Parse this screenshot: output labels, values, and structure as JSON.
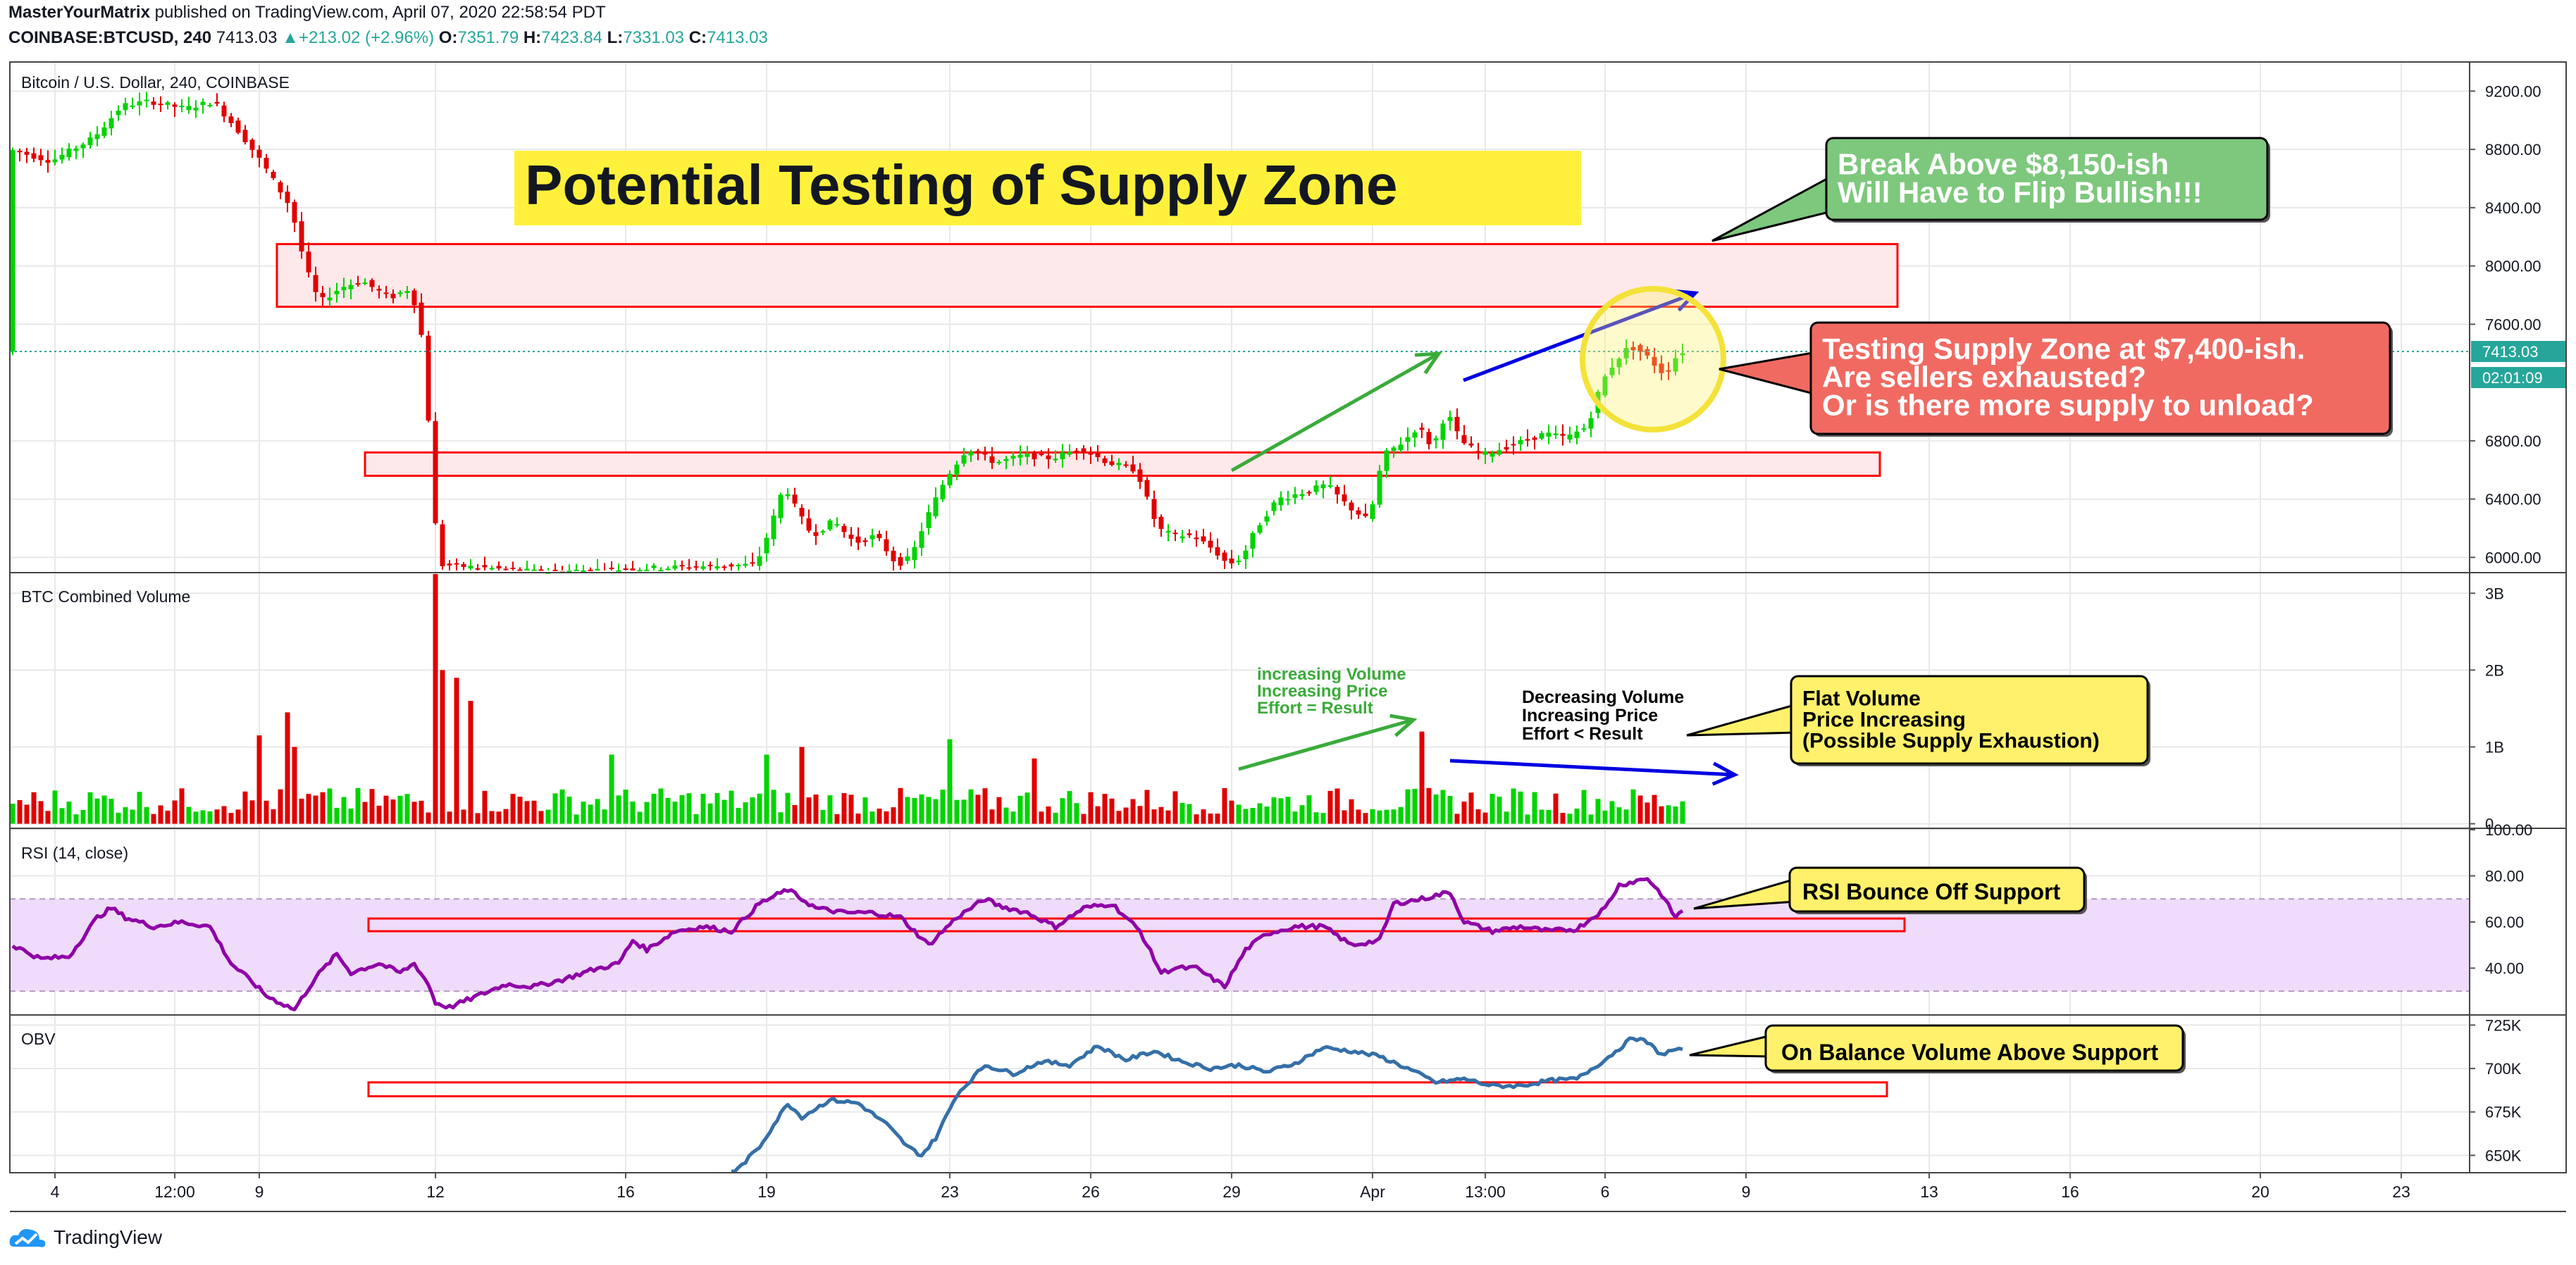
{
  "header": {
    "author": "MasterYourMatrix",
    "published_text": "published on TradingView.com, April 07, 2020 22:58:54 PDT",
    "symbol": "COINBASE:BTCUSD, 240",
    "last": "7413.03",
    "change": "+213.02 (+2.96%)",
    "o_label": "O:",
    "open": "7351.79",
    "h_label": "H:",
    "high": "7423.84",
    "l_label": "L:",
    "low": "7331.03",
    "c_label": "C:",
    "close": "7413.03"
  },
  "colors": {
    "up": "#00d400",
    "down": "#e00000",
    "grid": "#e8e8e8",
    "zone_fill": "#fde8ea",
    "zone_border": "#ff0000",
    "rsi_line": "#8e00a6",
    "obv_line": "#356fa8",
    "rsi_band": "#efdbfa",
    "green_box": "#7dc87d",
    "red_box": "#f06a62",
    "yellow_box": "#fff16b",
    "title_bg": "#fff13b",
    "arrow_green": "#3aab3a",
    "arrow_blue": "#0000e0"
  },
  "chart_data": [
    {
      "type": "candlestick",
      "title": "Bitcoin / U.S. Dollar, 240, COINBASE",
      "ylim": [
        5900,
        9400
      ],
      "yticks": [
        "9200.00",
        "8800.00",
        "8400.00",
        "8000.00",
        "7600.00",
        "6800.00",
        "6400.00",
        "6000.00"
      ],
      "price_label": "7413.03",
      "countdown_label": "02:01:09",
      "anchors": [
        [
          0,
          8800
        ],
        [
          6,
          8720
        ],
        [
          12,
          8880
        ],
        [
          16,
          9100
        ],
        [
          20,
          9130
        ],
        [
          25,
          9080
        ],
        [
          29,
          9130
        ],
        [
          33,
          8900
        ],
        [
          36,
          8700
        ],
        [
          40,
          8400
        ],
        [
          42,
          8000
        ],
        [
          44,
          7750
        ],
        [
          47,
          7850
        ],
        [
          50,
          7900
        ],
        [
          54,
          7780
        ],
        [
          57,
          7850
        ],
        [
          58,
          7650
        ],
        [
          59,
          7400
        ],
        [
          60,
          6500
        ],
        [
          61,
          5950
        ],
        [
          75,
          5900
        ],
        [
          106,
          5950
        ],
        [
          108,
          6200
        ],
        [
          110,
          6500
        ],
        [
          112,
          6300
        ],
        [
          114,
          6150
        ],
        [
          117,
          6250
        ],
        [
          120,
          6100
        ],
        [
          123,
          6150
        ],
        [
          126,
          5950
        ],
        [
          128,
          6000
        ],
        [
          130,
          6250
        ],
        [
          133,
          6550
        ],
        [
          136,
          6750
        ],
        [
          140,
          6650
        ],
        [
          144,
          6700
        ],
        [
          148,
          6680
        ],
        [
          152,
          6750
        ],
        [
          156,
          6650
        ],
        [
          160,
          6600
        ],
        [
          163,
          6200
        ],
        [
          165,
          6150
        ],
        [
          168,
          6150
        ],
        [
          171,
          6050
        ],
        [
          173,
          5950
        ],
        [
          175,
          6000
        ],
        [
          177,
          6200
        ],
        [
          180,
          6400
        ],
        [
          184,
          6450
        ],
        [
          187,
          6500
        ],
        [
          190,
          6350
        ],
        [
          193,
          6250
        ],
        [
          195,
          6700
        ],
        [
          198,
          6800
        ],
        [
          200,
          6900
        ],
        [
          202,
          6750
        ],
        [
          204,
          7000
        ],
        [
          206,
          6800
        ],
        [
          209,
          6700
        ],
        [
          212,
          6750
        ],
        [
          215,
          6800
        ],
        [
          218,
          6850
        ],
        [
          221,
          6820
        ],
        [
          224,
          6900
        ],
        [
          226,
          7200
        ],
        [
          228,
          7350
        ],
        [
          230,
          7450
        ],
        [
          232,
          7400
        ],
        [
          234,
          7300
        ],
        [
          235,
          7250
        ],
        [
          236,
          7330
        ],
        [
          237,
          7413
        ]
      ],
      "zones": [
        {
          "label": "supply zone",
          "x1": 37.5,
          "x2": 267.5,
          "p1": 8150,
          "p2": 7720
        },
        {
          "label": "support zone",
          "x1": 50,
          "x2": 265,
          "p1": 6720,
          "p2": 6560
        }
      ]
    },
    {
      "type": "bar",
      "title": "BTC Combined Volume",
      "ylim": [
        -0.05,
        3.25
      ],
      "yticks": [
        "3B",
        "2B",
        "1B",
        "0"
      ],
      "spikes": [
        [
          60,
          3.25
        ],
        [
          61,
          2.0
        ],
        [
          63,
          1.9
        ],
        [
          65,
          1.6
        ],
        [
          39,
          1.45
        ],
        [
          35,
          1.15
        ],
        [
          40,
          1.0
        ],
        [
          112,
          1.0
        ],
        [
          133,
          1.1
        ],
        [
          200,
          1.2
        ],
        [
          145,
          0.85
        ],
        [
          85,
          0.9
        ],
        [
          107,
          0.9
        ]
      ]
    },
    {
      "type": "line",
      "title": "RSI (14, close)",
      "ylim": [
        20,
        100
      ],
      "yticks": [
        "100.00",
        "80.00",
        "60.00",
        "40.00"
      ],
      "band": [
        30,
        70
      ],
      "anchors": [
        [
          0,
          50
        ],
        [
          4,
          44
        ],
        [
          8,
          45
        ],
        [
          12,
          62
        ],
        [
          14,
          66
        ],
        [
          16,
          62
        ],
        [
          18,
          60
        ],
        [
          20,
          58
        ],
        [
          24,
          60
        ],
        [
          28,
          58
        ],
        [
          31,
          42
        ],
        [
          34,
          34
        ],
        [
          36,
          28
        ],
        [
          38,
          25
        ],
        [
          40,
          22
        ],
        [
          43,
          36
        ],
        [
          46,
          46
        ],
        [
          48,
          38
        ],
        [
          52,
          42
        ],
        [
          55,
          38
        ],
        [
          57,
          42
        ],
        [
          59,
          33
        ],
        [
          60,
          25
        ],
        [
          62,
          23
        ],
        [
          66,
          28
        ],
        [
          70,
          33
        ],
        [
          74,
          32
        ],
        [
          78,
          35
        ],
        [
          82,
          39
        ],
        [
          86,
          42
        ],
        [
          88,
          52
        ],
        [
          90,
          48
        ],
        [
          94,
          56
        ],
        [
          98,
          58
        ],
        [
          102,
          56
        ],
        [
          106,
          68
        ],
        [
          110,
          74
        ],
        [
          114,
          66
        ],
        [
          118,
          64
        ],
        [
          122,
          64
        ],
        [
          126,
          62
        ],
        [
          130,
          50
        ],
        [
          134,
          62
        ],
        [
          138,
          70
        ],
        [
          140,
          67
        ],
        [
          144,
          64
        ],
        [
          148,
          58
        ],
        [
          152,
          66
        ],
        [
          156,
          68
        ],
        [
          160,
          56
        ],
        [
          163,
          38
        ],
        [
          165,
          40
        ],
        [
          168,
          40
        ],
        [
          172,
          32
        ],
        [
          175,
          48
        ],
        [
          178,
          55
        ],
        [
          182,
          58
        ],
        [
          186,
          58
        ],
        [
          190,
          50
        ],
        [
          194,
          52
        ],
        [
          196,
          68
        ],
        [
          200,
          70
        ],
        [
          204,
          73
        ],
        [
          206,
          60
        ],
        [
          210,
          56
        ],
        [
          214,
          58
        ],
        [
          218,
          56
        ],
        [
          222,
          57
        ],
        [
          226,
          66
        ],
        [
          228,
          76
        ],
        [
          232,
          79
        ],
        [
          234,
          72
        ],
        [
          236,
          62
        ],
        [
          237,
          65
        ]
      ]
    },
    {
      "type": "line",
      "title": "OBV",
      "ylim": [
        640,
        730
      ],
      "yticks": [
        "725K",
        "700K",
        "675K",
        "650K"
      ],
      "anchors": [
        [
          102,
          638
        ],
        [
          106,
          655
        ],
        [
          110,
          680
        ],
        [
          112,
          672
        ],
        [
          116,
          682
        ],
        [
          120,
          680
        ],
        [
          124,
          668
        ],
        [
          127,
          655
        ],
        [
          129,
          650
        ],
        [
          131,
          660
        ],
        [
          134,
          685
        ],
        [
          138,
          702
        ],
        [
          142,
          697
        ],
        [
          146,
          704
        ],
        [
          150,
          702
        ],
        [
          154,
          713
        ],
        [
          158,
          705
        ],
        [
          162,
          710
        ],
        [
          166,
          704
        ],
        [
          170,
          700
        ],
        [
          174,
          702
        ],
        [
          178,
          698
        ],
        [
          182,
          703
        ],
        [
          186,
          712
        ],
        [
          190,
          710
        ],
        [
          194,
          707
        ],
        [
          198,
          700
        ],
        [
          202,
          692
        ],
        [
          206,
          694
        ],
        [
          210,
          690
        ],
        [
          214,
          690
        ],
        [
          218,
          693
        ],
        [
          222,
          694
        ],
        [
          226,
          705
        ],
        [
          230,
          718
        ],
        [
          232,
          715
        ],
        [
          234,
          708
        ],
        [
          236,
          711
        ],
        [
          237,
          710
        ]
      ]
    }
  ],
  "x_axis": {
    "ticks": [
      {
        "label": "4",
        "b": 6
      },
      {
        "label": "12:00",
        "b": 23
      },
      {
        "label": "9",
        "b": 35
      },
      {
        "label": "12",
        "b": 60
      },
      {
        "label": "16",
        "b": 87
      },
      {
        "label": "19",
        "b": 107
      },
      {
        "label": "23",
        "b": 133
      },
      {
        "label": "26",
        "b": 153
      },
      {
        "label": "29",
        "b": 173
      },
      {
        "label": "Apr",
        "b": 193
      },
      {
        "label": "13:00",
        "b": 209
      },
      {
        "label": "6",
        "b": 226
      },
      {
        "label": "9",
        "b": 246
      },
      {
        "label": "13",
        "b": 272
      },
      {
        "label": "16",
        "b": 292
      },
      {
        "label": "20",
        "b": 319
      },
      {
        "label": "23",
        "b": 339
      }
    ]
  },
  "annotations": {
    "title": "Potential Testing of Supply Zone",
    "callout_green": [
      "Break Above $8,150-ish",
      "Will Have to Flip Bullish!!!"
    ],
    "callout_red": [
      "Testing Supply Zone at $7,400-ish.",
      "Are sellers exhausted?",
      "Or is there more supply to unload?"
    ],
    "vol_green_text": [
      "increasing Volume",
      "Increasing Price",
      "Effort = Result"
    ],
    "vol_black_text": [
      "Decreasing Volume",
      "Increasing Price",
      "Effort < Result"
    ],
    "callout_yellow_vol": [
      "Flat Volume",
      "Price Increasing",
      "(Possible Supply Exhaustion)"
    ],
    "callout_rsi": "RSI Bounce Off Support",
    "callout_obv": "On Balance Volume Above Support"
  },
  "footer": {
    "brand": "TradingView"
  }
}
